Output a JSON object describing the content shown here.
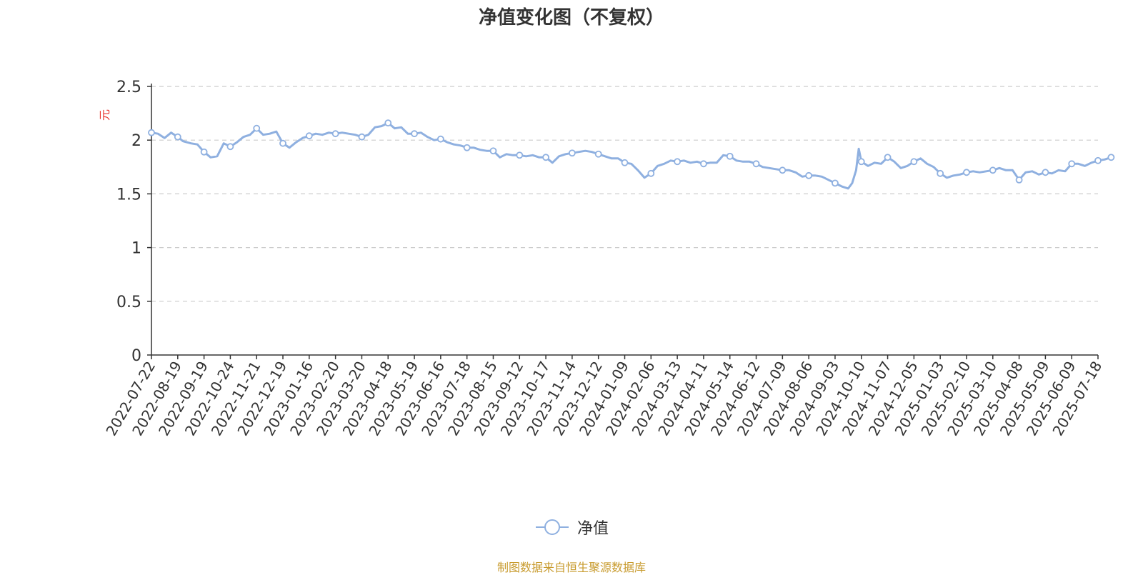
{
  "chart_data": {
    "type": "line",
    "title": "净值变化图（不复权）",
    "ylabel": "元",
    "ylim": [
      0,
      2.5
    ],
    "yticks": [
      "0",
      "0.5",
      "1",
      "1.5",
      "2",
      "2.5"
    ],
    "grid": "horizontal-dashed",
    "legend_position": "bottom-center",
    "categories": [
      "2022-07-22",
      "2022-08-19",
      "2022-09-19",
      "2022-10-24",
      "2022-11-21",
      "2022-12-19",
      "2023-01-16",
      "2023-02-20",
      "2023-03-20",
      "2023-04-18",
      "2023-05-19",
      "2023-06-16",
      "2023-07-18",
      "2023-08-15",
      "2023-09-12",
      "2023-10-17",
      "2023-11-14",
      "2023-12-12",
      "2024-01-09",
      "2024-02-06",
      "2024-03-13",
      "2024-04-11",
      "2024-05-14",
      "2024-06-12",
      "2024-07-09",
      "2024-08-06",
      "2024-09-03",
      "2024-10-10",
      "2024-11-07",
      "2024-12-05",
      "2025-01-03",
      "2025-02-10",
      "2025-03-10",
      "2025-04-08",
      "2025-05-09",
      "2025-06-09",
      "2025-07-18"
    ],
    "series": [
      {
        "name": "净值",
        "color": "#8fb0e0",
        "points": [
          [
            0,
            2.07
          ],
          [
            0.25,
            2.06
          ],
          [
            0.5,
            2.02
          ],
          [
            0.75,
            2.07
          ],
          [
            1,
            2.03
          ],
          [
            1.2,
            1.99
          ],
          [
            1.5,
            1.97
          ],
          [
            1.75,
            1.96
          ],
          [
            2,
            1.89
          ],
          [
            2.25,
            1.84
          ],
          [
            2.5,
            1.85
          ],
          [
            2.75,
            1.97
          ],
          [
            3,
            1.94
          ],
          [
            3.25,
            1.98
          ],
          [
            3.5,
            2.03
          ],
          [
            3.75,
            2.05
          ],
          [
            4,
            2.11
          ],
          [
            4.25,
            2.05
          ],
          [
            4.5,
            2.06
          ],
          [
            4.75,
            2.08
          ],
          [
            5,
            1.97
          ],
          [
            5.25,
            1.93
          ],
          [
            5.5,
            1.98
          ],
          [
            5.75,
            2.02
          ],
          [
            6,
            2.04
          ],
          [
            6.25,
            2.06
          ],
          [
            6.5,
            2.05
          ],
          [
            6.75,
            2.07
          ],
          [
            7,
            2.06
          ],
          [
            7.25,
            2.07
          ],
          [
            7.5,
            2.06
          ],
          [
            7.75,
            2.05
          ],
          [
            8,
            2.03
          ],
          [
            8.25,
            2.05
          ],
          [
            8.5,
            2.12
          ],
          [
            8.75,
            2.13
          ],
          [
            9,
            2.16
          ],
          [
            9.25,
            2.11
          ],
          [
            9.5,
            2.12
          ],
          [
            9.75,
            2.06
          ],
          [
            10,
            2.06
          ],
          [
            10.25,
            2.07
          ],
          [
            10.5,
            2.03
          ],
          [
            10.75,
            2.0
          ],
          [
            11,
            2.01
          ],
          [
            11.25,
            1.98
          ],
          [
            11.5,
            1.96
          ],
          [
            11.75,
            1.95
          ],
          [
            12,
            1.93
          ],
          [
            12.25,
            1.93
          ],
          [
            12.5,
            1.91
          ],
          [
            12.75,
            1.9
          ],
          [
            13,
            1.9
          ],
          [
            13.25,
            1.84
          ],
          [
            13.5,
            1.87
          ],
          [
            13.75,
            1.86
          ],
          [
            14,
            1.86
          ],
          [
            14.25,
            1.85
          ],
          [
            14.5,
            1.86
          ],
          [
            14.75,
            1.84
          ],
          [
            15,
            1.84
          ],
          [
            15.25,
            1.79
          ],
          [
            15.5,
            1.85
          ],
          [
            15.75,
            1.87
          ],
          [
            16,
            1.88
          ],
          [
            16.25,
            1.89
          ],
          [
            16.5,
            1.9
          ],
          [
            16.75,
            1.89
          ],
          [
            17,
            1.87
          ],
          [
            17.25,
            1.85
          ],
          [
            17.5,
            1.83
          ],
          [
            17.75,
            1.83
          ],
          [
            18,
            1.79
          ],
          [
            18.25,
            1.78
          ],
          [
            18.5,
            1.72
          ],
          [
            18.75,
            1.65
          ],
          [
            19,
            1.69
          ],
          [
            19.25,
            1.76
          ],
          [
            19.5,
            1.78
          ],
          [
            19.75,
            1.81
          ],
          [
            20,
            1.8
          ],
          [
            20.25,
            1.81
          ],
          [
            20.5,
            1.79
          ],
          [
            20.75,
            1.8
          ],
          [
            21,
            1.78
          ],
          [
            21.25,
            1.79
          ],
          [
            21.5,
            1.79
          ],
          [
            21.75,
            1.86
          ],
          [
            22,
            1.85
          ],
          [
            22.25,
            1.81
          ],
          [
            22.5,
            1.8
          ],
          [
            22.75,
            1.8
          ],
          [
            23,
            1.78
          ],
          [
            23.25,
            1.75
          ],
          [
            23.5,
            1.74
          ],
          [
            23.75,
            1.73
          ],
          [
            24,
            1.72
          ],
          [
            24.25,
            1.72
          ],
          [
            24.5,
            1.7
          ],
          [
            24.75,
            1.66
          ],
          [
            25,
            1.67
          ],
          [
            25.25,
            1.67
          ],
          [
            25.5,
            1.66
          ],
          [
            25.75,
            1.63
          ],
          [
            26,
            1.6
          ],
          [
            26.25,
            1.57
          ],
          [
            26.5,
            1.55
          ],
          [
            26.65,
            1.6
          ],
          [
            26.8,
            1.72
          ],
          [
            26.9,
            1.92
          ],
          [
            27,
            1.8
          ],
          [
            27.25,
            1.76
          ],
          [
            27.5,
            1.79
          ],
          [
            27.75,
            1.78
          ],
          [
            28,
            1.84
          ],
          [
            28.25,
            1.8
          ],
          [
            28.5,
            1.74
          ],
          [
            28.75,
            1.76
          ],
          [
            29,
            1.8
          ],
          [
            29.25,
            1.83
          ],
          [
            29.5,
            1.78
          ],
          [
            29.75,
            1.75
          ],
          [
            30,
            1.69
          ],
          [
            30.25,
            1.65
          ],
          [
            30.5,
            1.67
          ],
          [
            30.75,
            1.68
          ],
          [
            31,
            1.7
          ],
          [
            31.25,
            1.71
          ],
          [
            31.5,
            1.7
          ],
          [
            31.75,
            1.71
          ],
          [
            32,
            1.72
          ],
          [
            32.25,
            1.74
          ],
          [
            32.5,
            1.72
          ],
          [
            32.75,
            1.72
          ],
          [
            33,
            1.63
          ],
          [
            33.25,
            1.7
          ],
          [
            33.5,
            1.71
          ],
          [
            33.75,
            1.68
          ],
          [
            34,
            1.7
          ],
          [
            34.25,
            1.69
          ],
          [
            34.5,
            1.72
          ],
          [
            34.75,
            1.71
          ],
          [
            35,
            1.78
          ],
          [
            35.25,
            1.78
          ],
          [
            35.5,
            1.76
          ],
          [
            35.75,
            1.79
          ],
          [
            36,
            1.81
          ],
          [
            36.25,
            1.82
          ],
          [
            36.5,
            1.84
          ]
        ],
        "markers": [
          [
            0,
            2.07
          ],
          [
            1,
            2.03
          ],
          [
            2,
            1.89
          ],
          [
            3,
            1.94
          ],
          [
            4,
            2.11
          ],
          [
            5,
            1.97
          ],
          [
            6,
            2.04
          ],
          [
            7,
            2.06
          ],
          [
            8,
            2.03
          ],
          [
            9,
            2.16
          ],
          [
            10,
            2.06
          ],
          [
            11,
            2.01
          ],
          [
            12,
            1.93
          ],
          [
            13,
            1.9
          ],
          [
            14,
            1.86
          ],
          [
            15,
            1.84
          ],
          [
            16,
            1.88
          ],
          [
            17,
            1.87
          ],
          [
            18,
            1.79
          ],
          [
            19,
            1.69
          ],
          [
            20,
            1.8
          ],
          [
            21,
            1.78
          ],
          [
            22,
            1.85
          ],
          [
            23,
            1.78
          ],
          [
            24,
            1.72
          ],
          [
            25,
            1.67
          ],
          [
            26,
            1.6
          ],
          [
            27,
            1.8
          ],
          [
            28,
            1.84
          ],
          [
            29,
            1.8
          ],
          [
            30,
            1.69
          ],
          [
            31,
            1.7
          ],
          [
            32,
            1.72
          ],
          [
            33,
            1.63
          ],
          [
            34,
            1.7
          ],
          [
            35,
            1.78
          ],
          [
            36,
            1.81
          ],
          [
            36.5,
            1.84
          ]
        ]
      }
    ],
    "source_note": "制图数据来自恒生聚源数据库"
  }
}
